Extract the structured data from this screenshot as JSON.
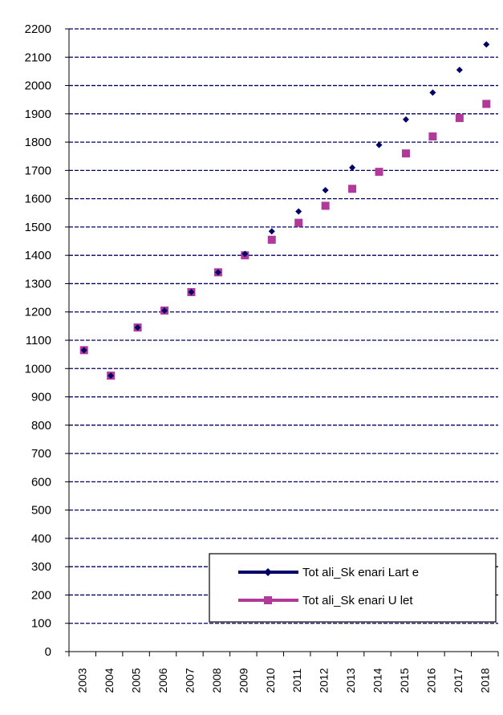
{
  "chart_data": {
    "type": "scatter",
    "title": "",
    "xlabel": "",
    "ylabel": "",
    "categories": [
      "2003",
      "2004",
      "2005",
      "2006",
      "2007",
      "2008",
      "2009",
      "2010",
      "2011",
      "2012",
      "2013",
      "2014",
      "2015",
      "2016",
      "2017",
      "2018"
    ],
    "ylim": [
      0,
      2200
    ],
    "yticks": [
      0,
      100,
      200,
      300,
      400,
      500,
      600,
      700,
      800,
      900,
      1000,
      1100,
      1200,
      1300,
      1400,
      1500,
      1600,
      1700,
      1800,
      1900,
      2000,
      2100,
      2200
    ],
    "grid": true,
    "grid_style": "dashed",
    "legend_position": "bottom-right",
    "series": [
      {
        "name": "Tot ali_Sk enari  Lart e",
        "marker": "diamond",
        "color": "#000066",
        "values": [
          1065,
          975,
          1145,
          1205,
          1270,
          1340,
          1405,
          1485,
          1555,
          1630,
          1710,
          1790,
          1880,
          1975,
          2055,
          2145
        ]
      },
      {
        "name": "Tot ali_Sk enari  U let",
        "marker": "square",
        "color": "#b0399a",
        "values": [
          1065,
          975,
          1145,
          1205,
          1270,
          1340,
          1400,
          1455,
          1515,
          1575,
          1635,
          1695,
          1760,
          1820,
          1885,
          1935
        ]
      }
    ]
  }
}
